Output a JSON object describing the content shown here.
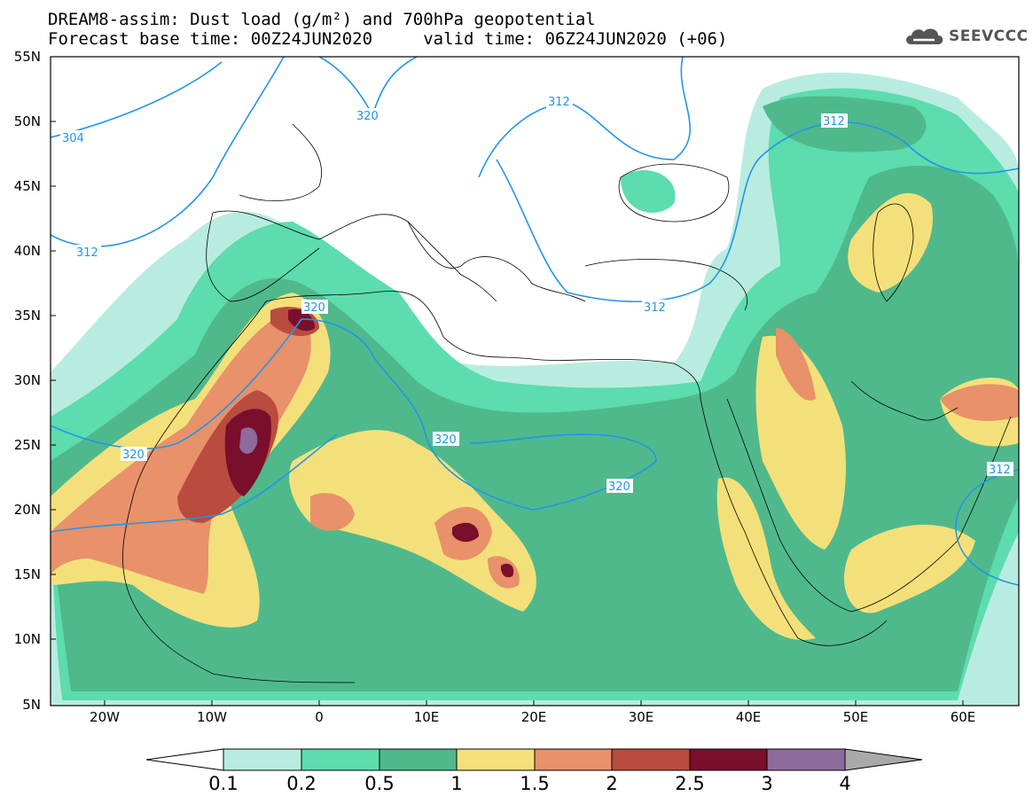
{
  "header": {
    "title_line1": "DREAM8-assim: Dust load (g/m²) and 700hPa geopotential",
    "title_line2": "Forecast base time: 00Z24JUN2020     valid time: 06Z24JUN2020 (+06)"
  },
  "logo": {
    "text": "SEEVCCC",
    "icon": "cloud-icon"
  },
  "axes": {
    "lon_ticks": [
      "20W",
      "10W",
      "0",
      "10E",
      "20E",
      "30E",
      "40E",
      "50E",
      "60E"
    ],
    "lat_ticks": [
      "55N",
      "50N",
      "45N",
      "40N",
      "35N",
      "30N",
      "25N",
      "20N",
      "15N",
      "10N",
      "5N"
    ],
    "lon_range": [
      -25,
      65
    ],
    "lat_range": [
      5,
      55
    ]
  },
  "contours": {
    "color": "#2196e8",
    "labels": [
      "304",
      "312",
      "320",
      "320",
      "312",
      "312",
      "320",
      "320",
      "320",
      "312",
      "312"
    ]
  },
  "colorbar": {
    "ticks": [
      "0.1",
      "0.2",
      "0.5",
      "1",
      "1.5",
      "2",
      "2.5",
      "3",
      "4"
    ],
    "colors": [
      "#ffffff",
      "#b9ece0",
      "#5ddcae",
      "#4fb98c",
      "#f4e07a",
      "#e8916a",
      "#b94c3e",
      "#7a0e2d",
      "#8f6a9c",
      "#a9a9a9"
    ]
  }
}
